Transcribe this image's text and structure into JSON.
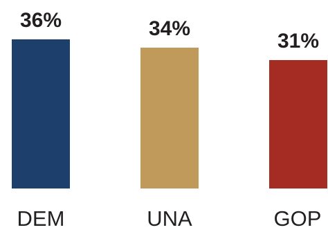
{
  "chart_data": {
    "type": "bar",
    "categories": [
      "DEM",
      "UNA",
      "GOP"
    ],
    "values": [
      36,
      34,
      31
    ],
    "value_labels": [
      "36%",
      "34%",
      "31%"
    ],
    "colors": [
      "#1d3f6b",
      "#c09a5b",
      "#a52c22"
    ],
    "ylim": [
      0,
      36
    ],
    "grid": false,
    "legend": "none"
  }
}
